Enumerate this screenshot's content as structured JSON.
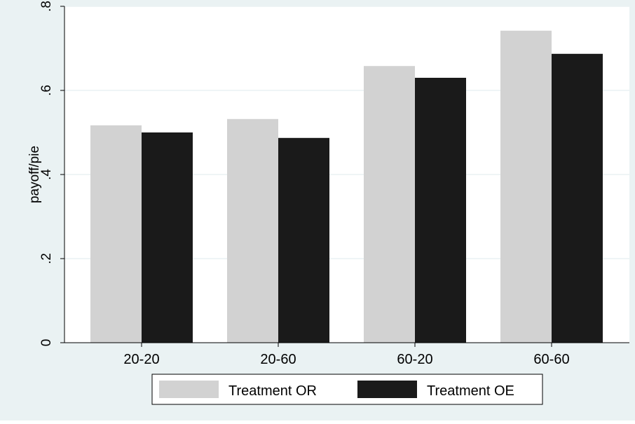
{
  "chart_data": {
    "type": "bar",
    "categories": [
      "20-20",
      "20-60",
      "60-20",
      "60-60"
    ],
    "series": [
      {
        "name": "Treatment OR",
        "values": [
          0.517,
          0.532,
          0.658,
          0.742
        ]
      },
      {
        "name": "Treatment OE",
        "values": [
          0.5,
          0.487,
          0.63,
          0.687
        ]
      }
    ],
    "title": "",
    "xlabel": "",
    "ylabel": "payoff/pie",
    "ylim": [
      0,
      0.8
    ],
    "yticks": [
      0,
      0.2,
      0.4,
      0.6,
      0.8
    ],
    "ytick_labels": [
      "0",
      ".2",
      ".4",
      ".6",
      ".8"
    ],
    "grid": true,
    "legend_position": "bottom",
    "colors": {
      "frame_background": "#eaf2f3",
      "plot_background": "#ffffff",
      "gridline": "#eaf2f3",
      "series": [
        "#d2d2d2",
        "#1a1a1a"
      ]
    }
  }
}
